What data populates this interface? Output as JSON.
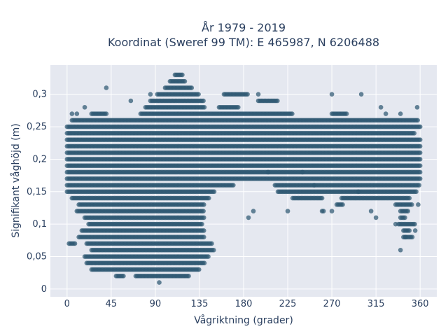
{
  "chart_data": {
    "type": "scatter",
    "title_line1": "År 1979 - 2019",
    "title_line2": "Koordinat (Sweref 99 TM): E 465987, N 6206488",
    "xlabel": "Vågriktning (grader)",
    "ylabel": "Signifikant våghöjd (m)",
    "xlim": [
      -17,
      377
    ],
    "ylim": [
      -0.012,
      0.345
    ],
    "x_ticks": [
      0,
      45,
      90,
      135,
      180,
      225,
      270,
      315,
      360
    ],
    "x_tick_labels": [
      "0",
      "45",
      "90",
      "135",
      "180",
      "225",
      "270",
      "315",
      "360"
    ],
    "y_ticks": [
      0,
      0.05,
      0.1,
      0.15,
      0.2,
      0.25,
      0.3
    ],
    "y_tick_labels": [
      "0",
      "0,05",
      "0,1",
      "0,15",
      "0,2",
      "0,25",
      "0,3"
    ],
    "marker_color": "#2e5872",
    "background_color": "#e5e8f0",
    "y_step": 0.01,
    "bands": [
      {
        "y": 0.01,
        "x": [
          [
            94,
            94
          ]
        ]
      },
      {
        "y": 0.02,
        "x": [
          [
            50,
            58
          ],
          [
            70,
            125
          ]
        ]
      },
      {
        "y": 0.03,
        "x": [
          [
            25,
            135
          ]
        ]
      },
      {
        "y": 0.04,
        "x": [
          [
            20,
            140
          ]
        ]
      },
      {
        "y": 0.05,
        "x": [
          [
            18,
            145
          ]
        ]
      },
      {
        "y": 0.06,
        "x": [
          [
            25,
            150
          ]
        ]
      },
      {
        "y": 0.07,
        "x": [
          [
            2,
            8
          ],
          [
            20,
            148
          ]
        ]
      },
      {
        "y": 0.08,
        "x": [
          [
            12,
            140
          ],
          [
            343,
            352
          ]
        ]
      },
      {
        "y": 0.09,
        "x": [
          [
            15,
            140
          ],
          [
            343,
            350
          ]
        ]
      },
      {
        "y": 0.1,
        "x": [
          [
            22,
            138
          ],
          [
            338,
            355
          ]
        ]
      },
      {
        "y": 0.11,
        "x": [
          [
            18,
            140
          ],
          [
            340,
            345
          ]
        ]
      },
      {
        "y": 0.12,
        "x": [
          [
            10,
            140
          ],
          [
            260,
            262
          ],
          [
            340,
            348
          ]
        ]
      },
      {
        "y": 0.13,
        "x": [
          [
            12,
            140
          ],
          [
            275,
            282
          ],
          [
            335,
            352
          ]
        ]
      },
      {
        "y": 0.14,
        "x": [
          [
            5,
            145
          ],
          [
            230,
            260
          ],
          [
            280,
            350
          ]
        ]
      },
      {
        "y": 0.15,
        "x": [
          [
            0,
            150
          ],
          [
            215,
            357
          ]
        ]
      },
      {
        "y": 0.16,
        "x": [
          [
            0,
            170
          ],
          [
            212,
            360
          ]
        ]
      },
      {
        "y": 0.17,
        "x": [
          [
            0,
            360
          ]
        ]
      },
      {
        "y": 0.18,
        "x": [
          [
            0,
            360
          ]
        ]
      },
      {
        "y": 0.19,
        "x": [
          [
            0,
            360
          ]
        ]
      },
      {
        "y": 0.2,
        "x": [
          [
            0,
            360
          ]
        ]
      },
      {
        "y": 0.21,
        "x": [
          [
            0,
            360
          ]
        ]
      },
      {
        "y": 0.22,
        "x": [
          [
            0,
            360
          ]
        ]
      },
      {
        "y": 0.23,
        "x": [
          [
            0,
            360
          ]
        ]
      },
      {
        "y": 0.24,
        "x": [
          [
            0,
            355
          ]
        ]
      },
      {
        "y": 0.25,
        "x": [
          [
            0,
            360
          ]
        ]
      },
      {
        "y": 0.26,
        "x": [
          [
            5,
            358
          ]
        ]
      },
      {
        "y": 0.27,
        "x": [
          [
            25,
            40
          ],
          [
            75,
            230
          ],
          [
            270,
            285
          ]
        ]
      },
      {
        "y": 0.28,
        "x": [
          [
            80,
            140
          ],
          [
            155,
            175
          ]
        ]
      },
      {
        "y": 0.29,
        "x": [
          [
            85,
            140
          ],
          [
            195,
            215
          ]
        ]
      },
      {
        "y": 0.3,
        "x": [
          [
            92,
            135
          ],
          [
            160,
            185
          ]
        ]
      },
      {
        "y": 0.31,
        "x": [
          [
            100,
            128
          ]
        ]
      },
      {
        "y": 0.32,
        "x": [
          [
            105,
            120
          ]
        ]
      },
      {
        "y": 0.33,
        "x": [
          [
            110,
            118
          ]
        ]
      }
    ],
    "outliers": [
      {
        "x": 40,
        "y": 0.31
      },
      {
        "x": 65,
        "y": 0.29
      },
      {
        "x": 85,
        "y": 0.3
      },
      {
        "x": 195,
        "y": 0.3
      },
      {
        "x": 270,
        "y": 0.3
      },
      {
        "x": 300,
        "y": 0.3
      },
      {
        "x": 320,
        "y": 0.28
      },
      {
        "x": 357,
        "y": 0.28
      },
      {
        "x": 5,
        "y": 0.27
      },
      {
        "x": 10,
        "y": 0.27
      },
      {
        "x": 18,
        "y": 0.28
      },
      {
        "x": 325,
        "y": 0.27
      },
      {
        "x": 340,
        "y": 0.27
      },
      {
        "x": 190,
        "y": 0.12
      },
      {
        "x": 225,
        "y": 0.12
      },
      {
        "x": 270,
        "y": 0.12
      },
      {
        "x": 315,
        "y": 0.11
      },
      {
        "x": 335,
        "y": 0.1
      },
      {
        "x": 345,
        "y": 0.08
      },
      {
        "x": 340,
        "y": 0.06
      },
      {
        "x": 185,
        "y": 0.11
      },
      {
        "x": 310,
        "y": 0.12
      },
      {
        "x": 297,
        "y": 0.15
      },
      {
        "x": 205,
        "y": 0.18
      },
      {
        "x": 240,
        "y": 0.18
      },
      {
        "x": 252,
        "y": 0.16
      },
      {
        "x": 358,
        "y": 0.13
      },
      {
        "x": 355,
        "y": 0.09
      }
    ]
  }
}
